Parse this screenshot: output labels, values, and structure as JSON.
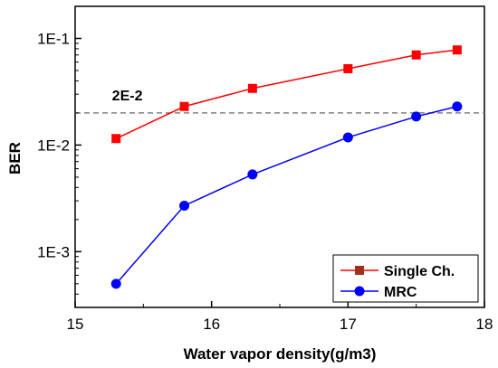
{
  "chart_data": {
    "type": "line",
    "xlabel": "Water vapor density(g/m3)",
    "ylabel": "BER",
    "xlim": [
      15,
      18
    ],
    "ylim": [
      0.0003,
      0.2
    ],
    "yscale": "log",
    "xticks": [
      15,
      16,
      17,
      18
    ],
    "xtick_labels": [
      "15",
      "16",
      "17",
      "18"
    ],
    "yticks": [
      0.001,
      0.01,
      0.1
    ],
    "ytick_labels": [
      "1E-3",
      "1E-2",
      "1E-1"
    ],
    "grid": false,
    "legend_position": "bottom-right",
    "series": [
      {
        "name": "Single Ch.",
        "color": "#ff0000",
        "marker": "square",
        "x": [
          15.3,
          15.8,
          16.3,
          17.0,
          17.5,
          17.8
        ],
        "y": [
          0.0115,
          0.023,
          0.034,
          0.052,
          0.07,
          0.078
        ]
      },
      {
        "name": "MRC",
        "color": "#0000ff",
        "marker": "circle",
        "x": [
          15.3,
          15.8,
          16.3,
          17.0,
          17.5,
          17.8
        ],
        "y": [
          0.0005,
          0.0027,
          0.0053,
          0.0118,
          0.0185,
          0.023
        ]
      }
    ],
    "reference_line": {
      "y": 0.02,
      "label": "2E-2",
      "color": "#808080",
      "style": "dashed"
    }
  }
}
